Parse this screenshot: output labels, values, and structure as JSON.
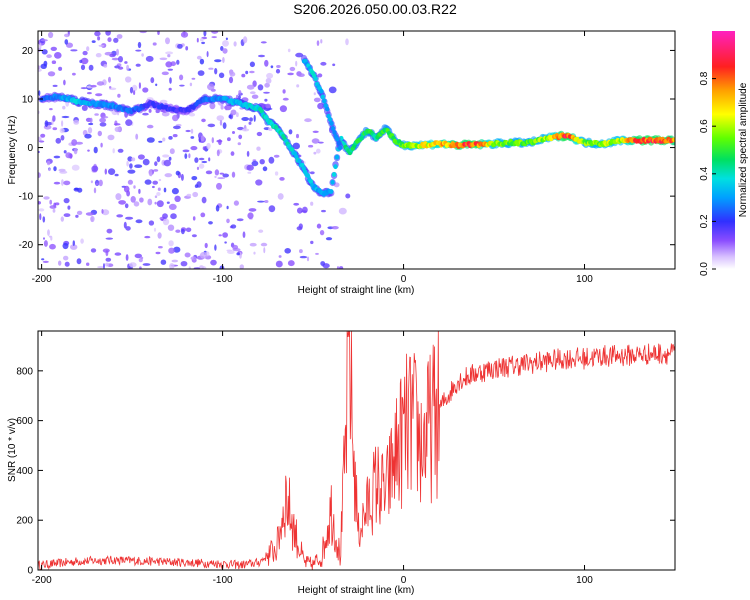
{
  "title": "S206.2026.050.00.03.R22",
  "colors": {
    "snr_line": "#ee3333",
    "spectrum_low": "#a060ff",
    "spectrum_mid": "#00cc66",
    "spectrum_high": "#ff3333"
  },
  "chart_data": [
    {
      "type": "heatmap",
      "xlabel": "Height of straight line (km)",
      "ylabel": "Frequency (Hz)",
      "xlim": [
        -202,
        150
      ],
      "ylim": [
        -25,
        24
      ],
      "xticks": [
        -200,
        -100,
        0,
        100
      ],
      "xtick_labels": [
        "-200",
        "-100",
        "0",
        "100"
      ],
      "yticks": [
        -20,
        -10,
        0,
        10,
        20
      ],
      "ytick_labels": [
        "-20",
        "-10",
        "0",
        "10",
        "20"
      ],
      "colorbar": {
        "label": "Normalized spectral amplitude",
        "range": [
          0.0,
          1.0
        ],
        "ticks": [
          0.0,
          0.2,
          0.4,
          0.6,
          0.8
        ],
        "tick_labels": [
          "0.0",
          "0.2",
          "0.4",
          "0.6",
          "0.8"
        ]
      },
      "ridge": [
        {
          "x": -200,
          "f": 10.0,
          "amp": 0.22
        },
        {
          "x": -190,
          "f": 10.5,
          "amp": 0.3
        },
        {
          "x": -180,
          "f": 9.5,
          "amp": 0.35
        },
        {
          "x": -170,
          "f": 9.0,
          "amp": 0.3
        },
        {
          "x": -160,
          "f": 8.5,
          "amp": 0.28
        },
        {
          "x": -150,
          "f": 7.5,
          "amp": 0.25
        },
        {
          "x": -140,
          "f": 9.0,
          "amp": 0.2
        },
        {
          "x": -130,
          "f": 8.0,
          "amp": 0.2
        },
        {
          "x": -120,
          "f": 7.5,
          "amp": 0.18
        },
        {
          "x": -110,
          "f": 10.0,
          "amp": 0.25
        },
        {
          "x": -100,
          "f": 10.0,
          "amp": 0.3
        },
        {
          "x": -90,
          "f": 9.0,
          "amp": 0.35
        },
        {
          "x": -80,
          "f": 8.0,
          "amp": 0.4
        },
        {
          "x": -75,
          "f": 5.5,
          "amp": 0.4
        },
        {
          "x": -70,
          "f": 4.0,
          "amp": 0.4
        },
        {
          "x": -65,
          "f": 1.5,
          "amp": 0.4
        },
        {
          "x": -60,
          "f": -1.5,
          "amp": 0.38
        },
        {
          "x": -55,
          "f": -4.5,
          "amp": 0.35
        },
        {
          "x": -50,
          "f": -8.0,
          "amp": 0.35
        },
        {
          "x": -45,
          "f": -9.5,
          "amp": 0.3
        },
        {
          "x": -40,
          "f": -9.0,
          "amp": 0.3
        },
        {
          "x": -35,
          "f": 2.0,
          "amp": 0.42
        },
        {
          "x": -30,
          "f": -1.0,
          "amp": 0.45
        },
        {
          "x": -25,
          "f": 1.5,
          "amp": 0.48
        },
        {
          "x": -20,
          "f": 3.5,
          "amp": 0.5
        },
        {
          "x": -15,
          "f": 2.0,
          "amp": 0.45
        },
        {
          "x": -10,
          "f": 4.0,
          "amp": 0.5
        },
        {
          "x": -5,
          "f": 1.5,
          "amp": 0.5
        },
        {
          "x": 0,
          "f": 0.5,
          "amp": 0.55
        },
        {
          "x": 10,
          "f": 0.5,
          "amp": 0.65
        },
        {
          "x": 20,
          "f": 0.8,
          "amp": 0.72
        },
        {
          "x": 30,
          "f": 0.5,
          "amp": 0.82
        },
        {
          "x": 40,
          "f": 0.6,
          "amp": 0.85
        },
        {
          "x": 50,
          "f": 0.8,
          "amp": 0.6
        },
        {
          "x": 60,
          "f": 1.0,
          "amp": 0.55
        },
        {
          "x": 70,
          "f": 1.0,
          "amp": 0.55
        },
        {
          "x": 80,
          "f": 2.0,
          "amp": 0.6
        },
        {
          "x": 90,
          "f": 2.5,
          "amp": 0.9
        },
        {
          "x": 100,
          "f": 1.0,
          "amp": 0.55
        },
        {
          "x": 110,
          "f": 0.8,
          "amp": 0.6
        },
        {
          "x": 120,
          "f": 1.5,
          "amp": 0.62
        },
        {
          "x": 130,
          "f": 1.5,
          "amp": 0.85
        },
        {
          "x": 140,
          "f": 1.5,
          "amp": 0.85
        },
        {
          "x": 150,
          "f": 1.5,
          "amp": 0.8
        }
      ],
      "branch": [
        {
          "x": -55,
          "f": 18.0,
          "amp": 0.3
        },
        {
          "x": -50,
          "f": 15.0,
          "amp": 0.4
        },
        {
          "x": -45,
          "f": 11.0,
          "amp": 0.35
        },
        {
          "x": -40,
          "f": 5.0,
          "amp": 0.3
        },
        {
          "x": -35,
          "f": 0.0,
          "amp": 0.3
        }
      ]
    },
    {
      "type": "line",
      "xlabel": "Height of straight line (km)",
      "ylabel": "SNR (10 * v/v)",
      "xlim": [
        -202,
        150
      ],
      "ylim": [
        0,
        960
      ],
      "xticks": [
        -200,
        -100,
        0,
        100
      ],
      "xtick_labels": [
        "-200",
        "-100",
        "0",
        "100"
      ],
      "yticks": [
        0,
        200,
        400,
        600,
        800
      ],
      "ytick_labels": [
        "0",
        "200",
        "400",
        "600",
        "800"
      ],
      "series": [
        {
          "name": "SNR",
          "x": [
            -200,
            -180,
            -160,
            -140,
            -120,
            -100,
            -90,
            -80,
            -70,
            -65,
            -60,
            -55,
            -50,
            -45,
            -40,
            -35,
            -32,
            -30,
            -28,
            -25,
            -20,
            -15,
            -10,
            -5,
            0,
            5,
            10,
            15,
            20,
            30,
            40,
            50,
            60,
            70,
            80,
            90,
            100,
            110,
            120,
            130,
            140,
            150
          ],
          "y": [
            20,
            35,
            40,
            35,
            30,
            25,
            20,
            30,
            90,
            300,
            150,
            30,
            20,
            60,
            250,
            50,
            500,
            960,
            500,
            150,
            250,
            350,
            300,
            450,
            550,
            600,
            500,
            580,
            650,
            760,
            790,
            810,
            820,
            830,
            840,
            850,
            850,
            860,
            860,
            865,
            870,
            870
          ]
        }
      ]
    }
  ]
}
